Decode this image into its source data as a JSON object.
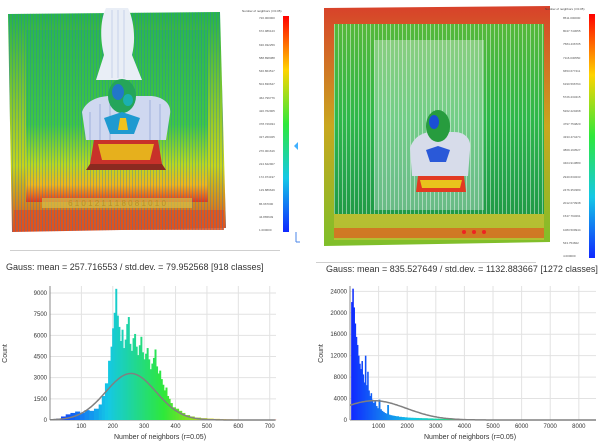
{
  "left": {
    "scale": {
      "title": "Number of neighbors (r=0.05)",
      "ticks": [
        "720.000000",
        "672.986123",
        "630.932259",
        "588.898388",
        "546.864517",
        "504.830647",
        "462.796776",
        "420.762905",
        "378.729034",
        "327.260325",
        "270.001616",
        "224.622907",
        "172.974197",
        "129.889649",
        "86.967000",
        "44.865649",
        "1.000000"
      ]
    },
    "gauss_text": "Gauss: mean = 257.716553 / std.dev. = 79.952568 [918 classes]",
    "xlabel": "Number of neighbors (r=0.05)",
    "ylabel": "Count"
  },
  "right": {
    "scale": {
      "title": "Number of neighbors (r=0.05)",
      "ticks": [
        "8511.000000",
        "8047.743055",
        "7584.436705",
        "7116.030550",
        "6653.677411",
        "6190.596764",
        "5726.233415",
        "5262.220468",
        "4797.754820",
        "4333.474474",
        "3869.193527",
        "3404.913880",
        "2940.633233",
        "2476.353380",
        "2012.073938",
        "1547.793291",
        "1083.509944",
        "543.754822",
        "4.000000"
      ]
    },
    "gauss_text": "Gauss: mean = 835.527649 / std.dev. = 1132.883667 [1272 classes]",
    "xlabel": "Number of neighbors (r=0.05)",
    "ylabel": "Count"
  },
  "chart_data": [
    {
      "type": "bar",
      "title": "Gauss: mean = 257.716553 / std.dev. = 79.952568 [918 classes]",
      "xlabel": "Number of neighbors (r=0.05)",
      "ylabel": "Count",
      "xlim": [
        0,
        720
      ],
      "ylim": [
        0,
        9500
      ],
      "xticks": [
        100,
        200,
        300,
        400,
        500,
        600,
        700
      ],
      "yticks": [
        0,
        1500,
        3000,
        4500,
        6000,
        7500,
        9000
      ],
      "histogram": {
        "x": [
          20,
          35,
          50,
          65,
          80,
          95,
          110,
          125,
          140,
          155,
          165,
          175,
          185,
          193,
          198,
          203,
          208,
          213,
          218,
          223,
          228,
          233,
          238,
          243,
          248,
          253,
          258,
          263,
          268,
          273,
          278,
          283,
          288,
          293,
          298,
          303,
          308,
          313,
          318,
          323,
          328,
          333,
          338,
          343,
          348,
          353,
          358,
          363,
          368,
          373,
          378,
          383,
          390,
          400,
          410,
          420,
          430,
          445,
          460,
          480,
          500,
          520,
          540,
          560,
          580,
          600,
          620,
          640,
          660,
          680,
          700
        ],
        "counts": [
          100,
          250,
          400,
          500,
          600,
          500,
          700,
          650,
          800,
          1100,
          1700,
          2600,
          4200,
          5200,
          6500,
          7600,
          9300,
          7400,
          6600,
          5600,
          6400,
          5100,
          5700,
          6800,
          7300,
          5400,
          4900,
          5800,
          6100,
          5200,
          4600,
          5300,
          5900,
          4800,
          4300,
          4700,
          5100,
          4300,
          3600,
          4000,
          4400,
          5000,
          3800,
          3300,
          3500,
          2900,
          2500,
          2100,
          2300,
          1700,
          1500,
          1200,
          900,
          800,
          650,
          500,
          350,
          250,
          170,
          130,
          100,
          80,
          60,
          50,
          40,
          30,
          30,
          20,
          20,
          15,
          10
        ]
      },
      "gauss_curve": {
        "mean": 257.716553,
        "std": 79.952568,
        "peak": 3300
      }
    },
    {
      "type": "bar",
      "title": "Gauss: mean = 835.527649 / std.dev. = 1132.883667 [1272 classes]",
      "xlabel": "Number of neighbors (r=0.05)",
      "ylabel": "Count",
      "xlim": [
        0,
        8600
      ],
      "ylim": [
        0,
        25000
      ],
      "xticks": [
        1000,
        2000,
        3000,
        4000,
        5000,
        6000,
        7000,
        8000
      ],
      "yticks": [
        0,
        4000,
        8000,
        12000,
        16000,
        20000,
        24000
      ],
      "histogram": {
        "x": [
          40,
          80,
          120,
          160,
          200,
          240,
          280,
          320,
          360,
          400,
          440,
          480,
          520,
          560,
          600,
          640,
          680,
          720,
          760,
          800,
          850,
          900,
          950,
          1000,
          1050,
          1100,
          1150,
          1200,
          1250,
          1300,
          1350,
          1400,
          1450,
          1500,
          1550,
          1600,
          1700,
          1800,
          1900,
          2000,
          2100,
          2200,
          2300,
          2400,
          2500,
          2700,
          2900,
          3100,
          3300,
          3500,
          3700,
          4000,
          4500,
          5000
        ],
        "counts": [
          22000,
          24500,
          21000,
          18000,
          15500,
          14000,
          12000,
          10500,
          9500,
          11000,
          8500,
          7000,
          12000,
          6500,
          9000,
          5500,
          4500,
          5000,
          3800,
          3200,
          3500,
          2600,
          2200,
          3800,
          2000,
          1700,
          1500,
          1300,
          1200,
          2800,
          1000,
          900,
          850,
          800,
          750,
          700,
          600,
          550,
          500,
          450,
          420,
          400,
          380,
          360,
          340,
          300,
          260,
          220,
          180,
          150,
          120,
          90,
          60,
          30
        ]
      },
      "gauss_curve": {
        "mean": 835.527649,
        "std": 1132.883667,
        "peak": 3600
      }
    }
  ]
}
